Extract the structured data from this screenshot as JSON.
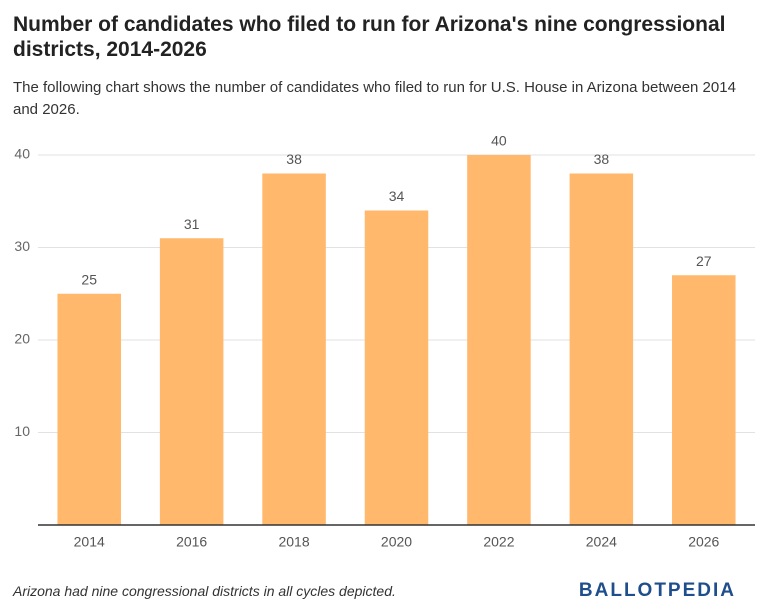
{
  "chart_data": {
    "type": "bar",
    "title": "Number of candidates who filed to run for Arizona's nine congressional districts, 2014-2026",
    "subtitle": "The following chart shows the number of candidates who filed to run for U.S. House in Arizona between 2014 and 2026.",
    "categories": [
      "2014",
      "2016",
      "2018",
      "2020",
      "2022",
      "2024",
      "2026"
    ],
    "values": [
      25,
      31,
      38,
      34,
      40,
      38,
      27
    ],
    "color": "#ffb86c",
    "ylim": [
      0,
      40
    ],
    "yticks": [
      10,
      20,
      30,
      40
    ],
    "grid": true,
    "note": "Arizona had nine congressional districts in all cycles depicted.",
    "logo": "BALLOTPEDIA"
  }
}
